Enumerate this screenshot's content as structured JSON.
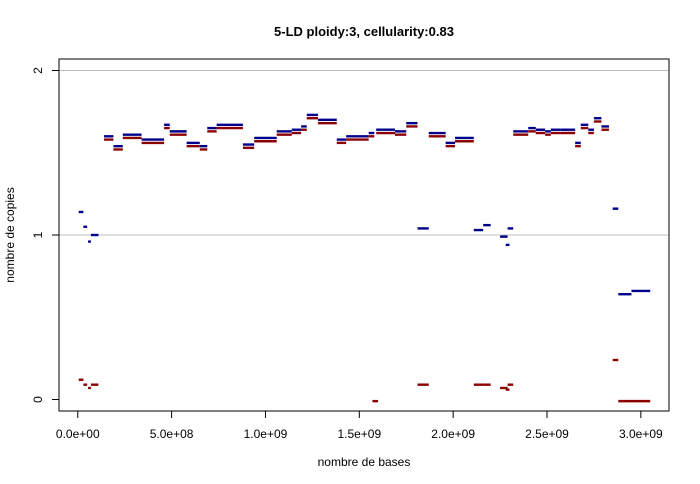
{
  "chart_data": {
    "type": "scatter",
    "title": "5-LD      ploidy:3, cellularity:0.83",
    "xlabel": "nombre de bases",
    "ylabel": "nombre de copies",
    "xlim": [
      -100000000,
      3150000000
    ],
    "ylim": [
      -0.07,
      2.07
    ],
    "x_ticks": [
      0,
      500000000,
      1000000000,
      1500000000,
      2000000000,
      2500000000,
      3000000000
    ],
    "x_tick_labels": [
      "0.0e+00",
      "5.0e+08",
      "1.0e+09",
      "1.5e+09",
      "2.0e+09",
      "2.5e+09",
      "3.0e+09"
    ],
    "y_ticks": [
      0,
      1,
      2
    ],
    "y_tick_labels": [
      "0",
      "1",
      "2"
    ],
    "hlines": [
      1,
      2
    ],
    "grid": false,
    "colors": {
      "major": "#00008b",
      "minor": "#8b0000",
      "hline": "#bebebe"
    },
    "series": [
      {
        "color": "#00008b",
        "segments": [
          [
            5000000,
            30000000,
            1.14
          ],
          [
            30000000,
            50000000,
            1.05
          ],
          [
            55000000,
            70000000,
            0.96
          ],
          [
            70000000,
            110000000,
            1.0
          ],
          [
            140000000,
            190000000,
            1.6
          ],
          [
            190000000,
            240000000,
            1.54
          ],
          [
            240000000,
            340000000,
            1.61
          ],
          [
            340000000,
            460000000,
            1.58
          ],
          [
            460000000,
            490000000,
            1.67
          ],
          [
            490000000,
            580000000,
            1.63
          ],
          [
            580000000,
            650000000,
            1.56
          ],
          [
            650000000,
            690000000,
            1.54
          ],
          [
            690000000,
            740000000,
            1.65
          ],
          [
            740000000,
            880000000,
            1.67
          ],
          [
            880000000,
            940000000,
            1.55
          ],
          [
            940000000,
            1060000000,
            1.59
          ],
          [
            1060000000,
            1140000000,
            1.63
          ],
          [
            1140000000,
            1190000000,
            1.64
          ],
          [
            1190000000,
            1220000000,
            1.66
          ],
          [
            1220000000,
            1280000000,
            1.73
          ],
          [
            1280000000,
            1380000000,
            1.7
          ],
          [
            1380000000,
            1430000000,
            1.58
          ],
          [
            1430000000,
            1550000000,
            1.6
          ],
          [
            1550000000,
            1580000000,
            1.62
          ],
          [
            1590000000,
            1690000000,
            1.64
          ],
          [
            1690000000,
            1750000000,
            1.63
          ],
          [
            1750000000,
            1810000000,
            1.68
          ],
          [
            1810000000,
            1870000000,
            1.04
          ],
          [
            1870000000,
            1960000000,
            1.62
          ],
          [
            1960000000,
            2010000000,
            1.56
          ],
          [
            2010000000,
            2110000000,
            1.59
          ],
          [
            2110000000,
            2160000000,
            1.03
          ],
          [
            2160000000,
            2200000000,
            1.06
          ],
          [
            2250000000,
            2290000000,
            0.99
          ],
          [
            2280000000,
            2300000000,
            0.94
          ],
          [
            2290000000,
            2320000000,
            1.04
          ],
          [
            2320000000,
            2400000000,
            1.63
          ],
          [
            2400000000,
            2440000000,
            1.65
          ],
          [
            2440000000,
            2490000000,
            1.64
          ],
          [
            2490000000,
            2520000000,
            1.63
          ],
          [
            2520000000,
            2570000000,
            1.64
          ],
          [
            2570000000,
            2650000000,
            1.64
          ],
          [
            2650000000,
            2680000000,
            1.56
          ],
          [
            2680000000,
            2720000000,
            1.67
          ],
          [
            2720000000,
            2750000000,
            1.64
          ],
          [
            2750000000,
            2790000000,
            1.71
          ],
          [
            2790000000,
            2830000000,
            1.66
          ],
          [
            2850000000,
            2880000000,
            1.16
          ],
          [
            2880000000,
            2950000000,
            0.64
          ],
          [
            2950000000,
            3050000000,
            0.66
          ]
        ]
      },
      {
        "color": "#8b0000",
        "segments": [
          [
            5000000,
            30000000,
            0.12
          ],
          [
            30000000,
            50000000,
            0.09
          ],
          [
            55000000,
            70000000,
            0.07
          ],
          [
            70000000,
            110000000,
            0.09
          ],
          [
            140000000,
            190000000,
            1.58
          ],
          [
            190000000,
            240000000,
            1.52
          ],
          [
            240000000,
            340000000,
            1.59
          ],
          [
            340000000,
            460000000,
            1.56
          ],
          [
            460000000,
            490000000,
            1.65
          ],
          [
            490000000,
            580000000,
            1.61
          ],
          [
            580000000,
            650000000,
            1.54
          ],
          [
            650000000,
            690000000,
            1.52
          ],
          [
            690000000,
            740000000,
            1.63
          ],
          [
            740000000,
            880000000,
            1.65
          ],
          [
            880000000,
            940000000,
            1.53
          ],
          [
            940000000,
            1060000000,
            1.57
          ],
          [
            1060000000,
            1140000000,
            1.61
          ],
          [
            1140000000,
            1190000000,
            1.62
          ],
          [
            1190000000,
            1220000000,
            1.64
          ],
          [
            1220000000,
            1280000000,
            1.71
          ],
          [
            1280000000,
            1380000000,
            1.68
          ],
          [
            1380000000,
            1430000000,
            1.56
          ],
          [
            1430000000,
            1550000000,
            1.58
          ],
          [
            1550000000,
            1580000000,
            1.6
          ],
          [
            1570000000,
            1600000000,
            -0.01
          ],
          [
            1590000000,
            1690000000,
            1.62
          ],
          [
            1690000000,
            1750000000,
            1.61
          ],
          [
            1750000000,
            1810000000,
            1.66
          ],
          [
            1810000000,
            1870000000,
            0.09
          ],
          [
            1870000000,
            1960000000,
            1.6
          ],
          [
            1960000000,
            2010000000,
            1.54
          ],
          [
            2010000000,
            2110000000,
            1.57
          ],
          [
            2110000000,
            2160000000,
            0.09
          ],
          [
            2160000000,
            2200000000,
            0.09
          ],
          [
            2250000000,
            2290000000,
            0.07
          ],
          [
            2280000000,
            2300000000,
            0.06
          ],
          [
            2290000000,
            2320000000,
            0.09
          ],
          [
            2320000000,
            2400000000,
            1.61
          ],
          [
            2400000000,
            2440000000,
            1.63
          ],
          [
            2440000000,
            2490000000,
            1.62
          ],
          [
            2490000000,
            2520000000,
            1.61
          ],
          [
            2520000000,
            2570000000,
            1.62
          ],
          [
            2570000000,
            2650000000,
            1.62
          ],
          [
            2650000000,
            2680000000,
            1.54
          ],
          [
            2680000000,
            2720000000,
            1.65
          ],
          [
            2720000000,
            2750000000,
            1.62
          ],
          [
            2750000000,
            2790000000,
            1.69
          ],
          [
            2790000000,
            2830000000,
            1.64
          ],
          [
            2850000000,
            2880000000,
            0.24
          ],
          [
            2880000000,
            3050000000,
            -0.01
          ]
        ]
      }
    ]
  }
}
